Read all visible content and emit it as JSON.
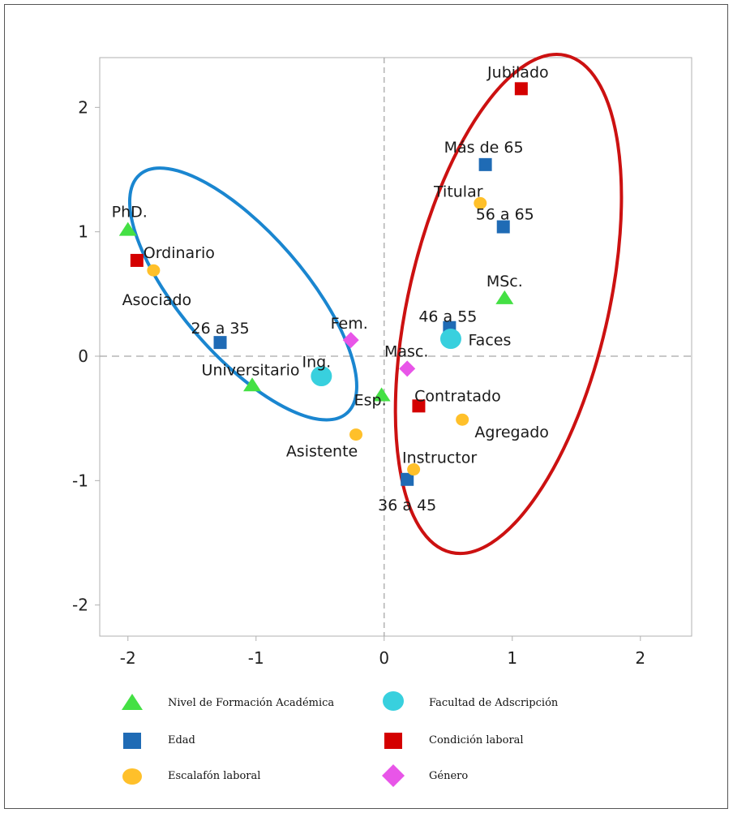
{
  "chart_data": {
    "type": "scatter",
    "title": "",
    "xlabel": "",
    "ylabel": "",
    "xlim": [
      -2.22,
      2.4
    ],
    "ylim": [
      -2.25,
      2.4
    ],
    "x_ticks": [
      -2,
      -1,
      0,
      1,
      2
    ],
    "y_ticks": [
      2,
      1,
      0,
      -1,
      -2
    ],
    "x_tick_labels": [
      "-2",
      "-1",
      "0",
      "1",
      "2"
    ],
    "y_tick_labels": [
      "2",
      "1",
      "0",
      "-1",
      "-2"
    ],
    "grid": false,
    "reference_lines": [
      {
        "axis": "x",
        "value": 0
      },
      {
        "axis": "y",
        "value": 0
      }
    ],
    "legend_placement": "bottom",
    "series": [
      {
        "name": "Nivel de Formación Académica",
        "marker": "triangle",
        "color": "#44e044",
        "points": [
          {
            "label": "PhD.",
            "x": -2.0,
            "y": 1.02
          },
          {
            "label": "MSc.",
            "x": 0.94,
            "y": 0.47
          },
          {
            "label": "Universitario",
            "x": -1.03,
            "y": -0.23
          },
          {
            "label": "Esp.",
            "x": -0.02,
            "y": -0.31
          }
        ]
      },
      {
        "name": "Edad",
        "marker": "square",
        "color": "#1f6bb5",
        "points": [
          {
            "label": "Más de 65",
            "x": 0.79,
            "y": 1.54
          },
          {
            "label": "56 a 65",
            "x": 0.93,
            "y": 1.04
          },
          {
            "label": "46 a 55",
            "x": 0.51,
            "y": 0.23
          },
          {
            "label": "26 a 35",
            "x": -1.28,
            "y": 0.11
          },
          {
            "label": "36 a 45",
            "x": 0.18,
            "y": -0.99
          }
        ]
      },
      {
        "name": "Escalafón laboral",
        "marker": "circle",
        "color": "#ffc02a",
        "points": [
          {
            "label": "Titular",
            "x": 0.75,
            "y": 1.23
          },
          {
            "label": "Asociado",
            "x": -1.8,
            "y": 0.69
          },
          {
            "label": "Agregado",
            "x": 0.61,
            "y": -0.51
          },
          {
            "label": "Asistente",
            "x": -0.22,
            "y": -0.63
          },
          {
            "label": "Instructor",
            "x": 0.23,
            "y": -0.91
          }
        ]
      },
      {
        "name": "Facultad de Adscripción",
        "marker": "circle-large",
        "color": "#38d0de",
        "points": [
          {
            "label": "Faces",
            "x": 0.52,
            "y": 0.14
          },
          {
            "label": "Ing.",
            "x": -0.49,
            "y": -0.16
          }
        ]
      },
      {
        "name": "Condición laboral",
        "marker": "square",
        "color": "#d40000",
        "points": [
          {
            "label": "Jubilado",
            "x": 1.07,
            "y": 2.15
          },
          {
            "label": "Ordinario",
            "x": -1.93,
            "y": 0.77
          },
          {
            "label": "Contratado",
            "x": 0.27,
            "y": -0.4
          }
        ]
      },
      {
        "name": "Género",
        "marker": "diamond",
        "color": "#e855e8",
        "points": [
          {
            "label": "Fem.",
            "x": -0.26,
            "y": 0.13
          },
          {
            "label": "Masc.",
            "x": 0.18,
            "y": -0.1
          }
        ]
      }
    ],
    "legend_order": [
      "Nivel de Formación Académica",
      "Facultad de Adscripción",
      "Edad",
      "Condición laboral",
      "Escalafón laboral",
      "Género"
    ],
    "highlight_ellipses": [
      {
        "color": "#1a86d0",
        "cx": -1.1,
        "cy": 0.5,
        "rx": 0.48,
        "ry": 1.27,
        "rotation": -41
      },
      {
        "color": "#cc1111",
        "cx": 0.97,
        "cy": 0.42,
        "rx": 0.78,
        "ry": 2.05,
        "rotation": 13
      }
    ]
  }
}
